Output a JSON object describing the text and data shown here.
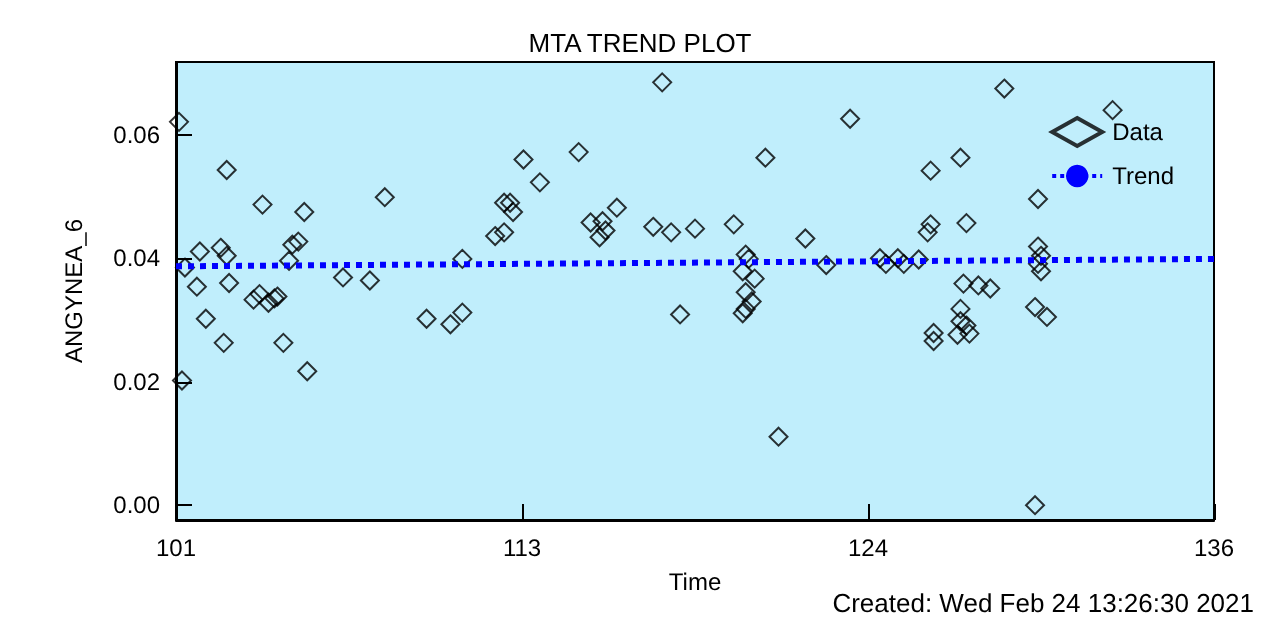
{
  "chart_data": {
    "type": "scatter",
    "title": "MTA TREND PLOT",
    "xlabel": "Time",
    "ylabel": "ANGYNEA_6",
    "annotations": [
      "Created: Wed Feb 24 13:26:30 2021"
    ],
    "xlim": [
      101.2,
      136
    ],
    "xticks": [
      {
        "value": 101.2,
        "label": "101"
      },
      {
        "value": 112.8,
        "label": "113"
      },
      {
        "value": 124.4,
        "label": "124"
      },
      {
        "value": 136,
        "label": "136"
      }
    ],
    "ylim": [
      -0.0024,
      0.0718
    ],
    "yticks": [
      {
        "value": 0,
        "label": "0.00"
      },
      {
        "value": 0.02,
        "label": "0.02"
      },
      {
        "value": 0.04,
        "label": "0.04"
      },
      {
        "value": 0.06,
        "label": "0.06"
      }
    ],
    "grid": false,
    "legend": "top right",
    "series": [
      {
        "name": "Data",
        "type": "scatter",
        "color": "#000000",
        "marker": "diamond",
        "x": [
          101.3,
          101.4,
          101.5,
          102.0,
          101.9,
          102.2,
          102.7,
          102.9,
          102.9,
          102.8,
          102.98,
          104.1,
          103.8,
          104.0,
          104.3,
          104.5,
          104.6,
          104.8,
          104.99,
          105.1,
          105.3,
          105.5,
          105.6,
          106.8,
          107.7,
          108.2,
          109.6,
          110.4,
          110.8,
          110.8,
          111.9,
          112.2,
          112.2,
          112.4,
          112.5,
          112.85,
          113.4,
          114.7,
          115.1,
          115.5,
          115.4,
          115.6,
          115.98,
          117.2,
          117.5,
          117.8,
          118.1,
          118.6,
          119.9,
          120.3,
          120.4,
          120.2,
          120.6,
          120.3,
          120.5,
          120.3,
          120.2,
          120.96,
          121.4,
          122.3,
          123.0,
          123.8,
          124.8,
          125.0,
          125.4,
          125.6,
          126.1,
          126.4,
          126.5,
          126.5,
          126.6,
          126.6,
          127.5,
          127.6,
          127.5,
          127.5,
          127.4,
          127.7,
          127.8,
          127.7,
          128.1,
          128.5,
          128.97,
          130.1,
          130.1,
          130.2,
          130.1,
          130.2,
          130.0,
          130.4,
          130.0,
          132.6
        ],
        "values": [
          0.0621,
          0.0202,
          0.0385,
          0.0411,
          0.0354,
          0.0302,
          0.0417,
          0.0404,
          0.0543,
          0.0263,
          0.036,
          0.0487,
          0.0333,
          0.0342,
          0.0328,
          0.0335,
          0.0338,
          0.0263,
          0.0396,
          0.0422,
          0.0427,
          0.0475,
          0.0217,
          0.0369,
          0.0364,
          0.0499,
          0.0302,
          0.0293,
          0.0312,
          0.0399,
          0.0436,
          0.049,
          0.0442,
          0.049,
          0.0475,
          0.056,
          0.0523,
          0.0572,
          0.0458,
          0.046,
          0.0434,
          0.0445,
          0.0482,
          0.0451,
          0.0685,
          0.0442,
          0.0309,
          0.0448,
          0.0455,
          0.0406,
          0.0399,
          0.0379,
          0.0367,
          0.0345,
          0.033,
          0.0318,
          0.0311,
          0.0563,
          0.0111,
          0.0432,
          0.0389,
          0.0626,
          0.04,
          0.0391,
          0.04,
          0.0391,
          0.0398,
          0.0442,
          0.0455,
          0.0542,
          0.0279,
          0.0266,
          0.0563,
          0.0359,
          0.0318,
          0.0298,
          0.0276,
          0.0457,
          0.0278,
          0.0291,
          0.0356,
          0.0351,
          0.0675,
          0.0496,
          0.0419,
          0.0404,
          0.0391,
          0.0379,
          0.0321,
          0.0305,
          0.0,
          0.064
        ]
      },
      {
        "name": "Trend",
        "type": "line",
        "color": "#0000ff",
        "marker": "none",
        "line_style": "dotted",
        "x": [
          101.2,
          136
        ],
        "values": [
          0.0387,
          0.0399
        ]
      }
    ]
  }
}
